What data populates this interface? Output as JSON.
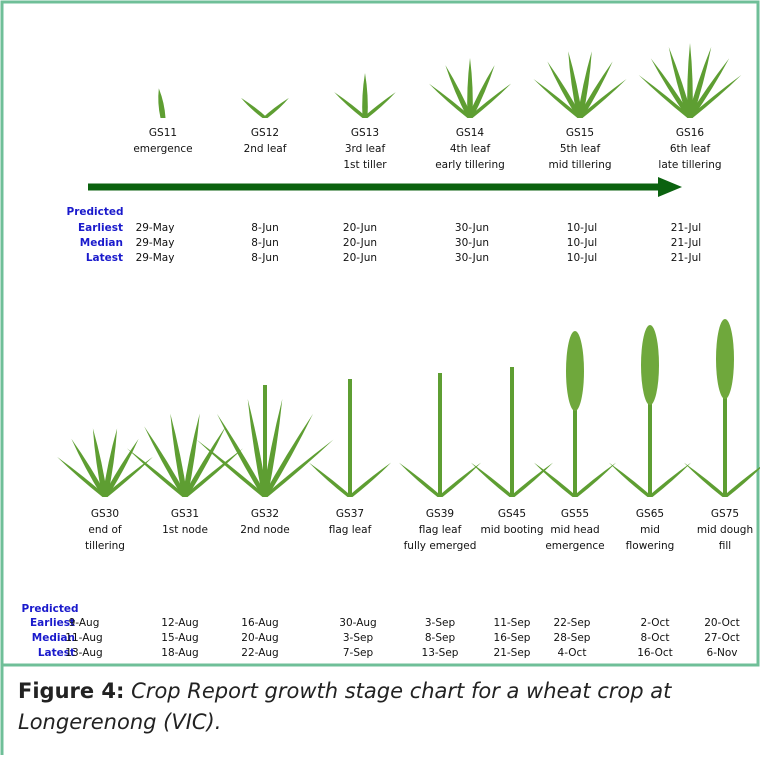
{
  "top": {
    "row_labels": {
      "predicted": "Predicted",
      "earliest": "Earliest",
      "median": "Median",
      "latest": "Latest"
    },
    "stages": [
      {
        "code": "GS11",
        "lines": [
          "emergence"
        ],
        "earliest": "29-May",
        "median": "29-May",
        "latest": "29-May"
      },
      {
        "code": "GS12",
        "lines": [
          "2nd leaf"
        ],
        "earliest": "8-Jun",
        "median": "8-Jun",
        "latest": "8-Jun"
      },
      {
        "code": "GS13",
        "lines": [
          "3rd leaf",
          "1st tiller"
        ],
        "earliest": "20-Jun",
        "median": "20-Jun",
        "latest": "20-Jun"
      },
      {
        "code": "GS14",
        "lines": [
          "4th leaf",
          "early tillering"
        ],
        "earliest": "30-Jun",
        "median": "30-Jun",
        "latest": "30-Jun"
      },
      {
        "code": "GS15",
        "lines": [
          "5th leaf",
          "mid tillering"
        ],
        "earliest": "10-Jul",
        "median": "10-Jul",
        "latest": "10-Jul"
      },
      {
        "code": "GS16",
        "lines": [
          "6th leaf",
          "late tillering"
        ],
        "earliest": "21-Jul",
        "median": "21-Jul",
        "latest": "21-Jul"
      }
    ]
  },
  "bottom": {
    "row_labels": {
      "predicted": "Predicted",
      "earliest": "Earliest",
      "median": "Median",
      "latest": "Latest"
    },
    "stages": [
      {
        "code": "GS30",
        "lines": [
          "end of",
          "tillering"
        ],
        "earliest": "9-Aug",
        "median": "11-Aug",
        "latest": "13-Aug"
      },
      {
        "code": "GS31",
        "lines": [
          "1st node"
        ],
        "earliest": "12-Aug",
        "median": "15-Aug",
        "latest": "18-Aug"
      },
      {
        "code": "GS32",
        "lines": [
          "2nd node"
        ],
        "earliest": "16-Aug",
        "median": "20-Aug",
        "latest": "22-Aug"
      },
      {
        "code": "GS37",
        "lines": [
          "flag leaf"
        ],
        "earliest": "30-Aug",
        "median": "3-Sep",
        "latest": "7-Sep"
      },
      {
        "code": "GS39",
        "lines": [
          "flag leaf",
          "fully emerged"
        ],
        "earliest": "3-Sep",
        "median": "8-Sep",
        "latest": "13-Sep"
      },
      {
        "code": "GS45",
        "lines": [
          "mid booting"
        ],
        "earliest": "11-Sep",
        "median": "16-Sep",
        "latest": "21-Sep"
      },
      {
        "code": "GS55",
        "lines": [
          "mid head",
          "emergence"
        ],
        "earliest": "22-Sep",
        "median": "28-Sep",
        "latest": "4-Oct"
      },
      {
        "code": "GS65",
        "lines": [
          "mid",
          "flowering"
        ],
        "earliest": "2-Oct",
        "median": "8-Oct",
        "latest": "16-Oct"
      },
      {
        "code": "GS75",
        "lines": [
          "mid dough",
          "fill"
        ],
        "earliest": "20-Oct",
        "median": "27-Oct",
        "latest": "6-Nov"
      }
    ]
  },
  "caption": {
    "label": "Figure 4:",
    "text": "Crop Report growth stage chart for a wheat crop at Longerenong (VIC)."
  }
}
